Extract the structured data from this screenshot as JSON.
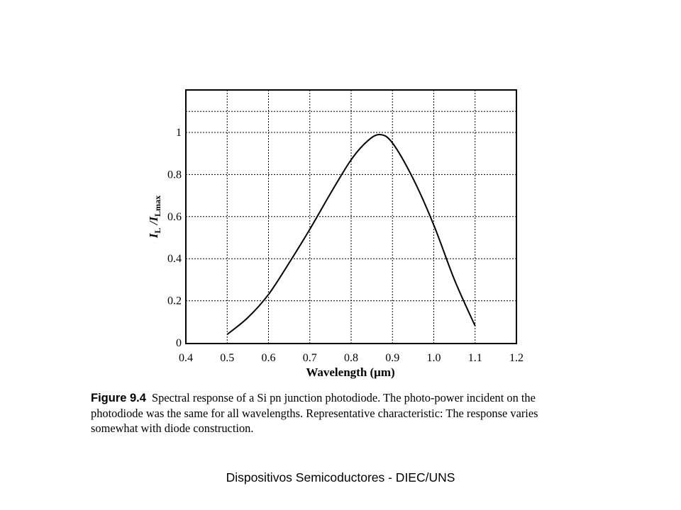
{
  "chart_data": {
    "type": "line",
    "xlabel": "Wavelength (μm)",
    "ylabel": {
      "main": "I",
      "main_sub": "L",
      "sep": " /I",
      "den_sub": "Lmax"
    },
    "xlim": [
      0.4,
      1.2
    ],
    "ylim": [
      0,
      1.2
    ],
    "x_ticks": [
      "0.4",
      "0.5",
      "0.6",
      "0.7",
      "0.8",
      "0.9",
      "1.0",
      "1.1",
      "1.2"
    ],
    "y_ticks": [
      "0",
      "0.2",
      "0.4",
      "0.6",
      "0.8",
      "1"
    ],
    "grid": true,
    "series": [
      {
        "x": [
          0.5,
          0.55,
          0.6,
          0.65,
          0.7,
          0.75,
          0.8,
          0.84,
          0.87,
          0.9,
          0.95,
          1.0,
          1.05,
          1.1
        ],
        "y": [
          0.04,
          0.12,
          0.23,
          0.38,
          0.54,
          0.71,
          0.87,
          0.96,
          0.99,
          0.95,
          0.78,
          0.56,
          0.3,
          0.08
        ]
      }
    ]
  },
  "caption": {
    "label": "Figure 9.4",
    "lines": [
      "Spectral response of a Si pn junction photodiode. The photo-power incident on the",
      "photodiode was the same for all wavelengths. Representative characteristic: The response varies",
      "somewhat with diode construction."
    ]
  },
  "footer": "Dispositivos Semicoductores - DIEC/UNS"
}
